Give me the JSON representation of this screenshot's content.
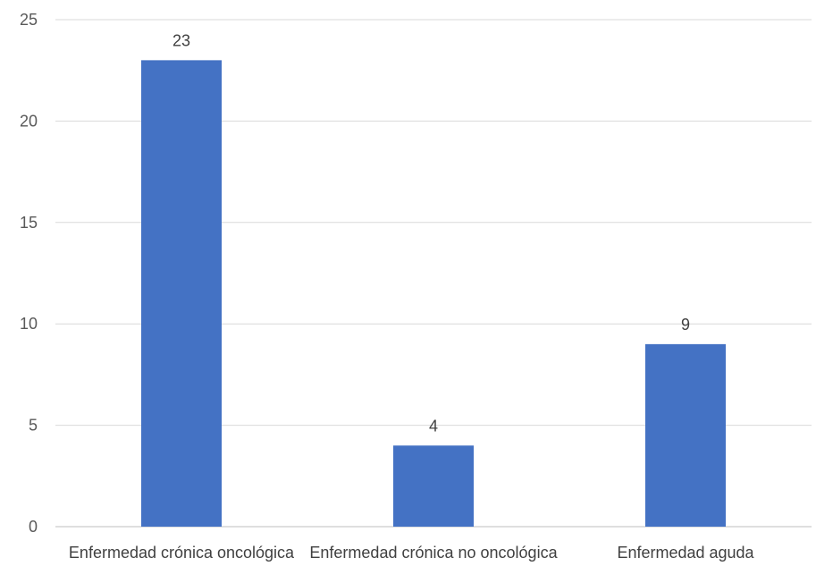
{
  "chart_data": {
    "type": "bar",
    "categories": [
      "Enfermedad crónica oncológica",
      "Enfermedad crónica no oncológica",
      "Enfermedad aguda"
    ],
    "values": [
      23,
      4,
      9
    ],
    "data_labels": [
      "23",
      "4",
      "9"
    ],
    "ylim": [
      0,
      25
    ],
    "yticks": [
      0,
      5,
      10,
      15,
      20,
      25
    ],
    "ytick_labels": [
      "0",
      "5",
      "10",
      "15",
      "20",
      "25"
    ],
    "grid": true,
    "legend": "none",
    "bar_color": "#4472C4"
  }
}
